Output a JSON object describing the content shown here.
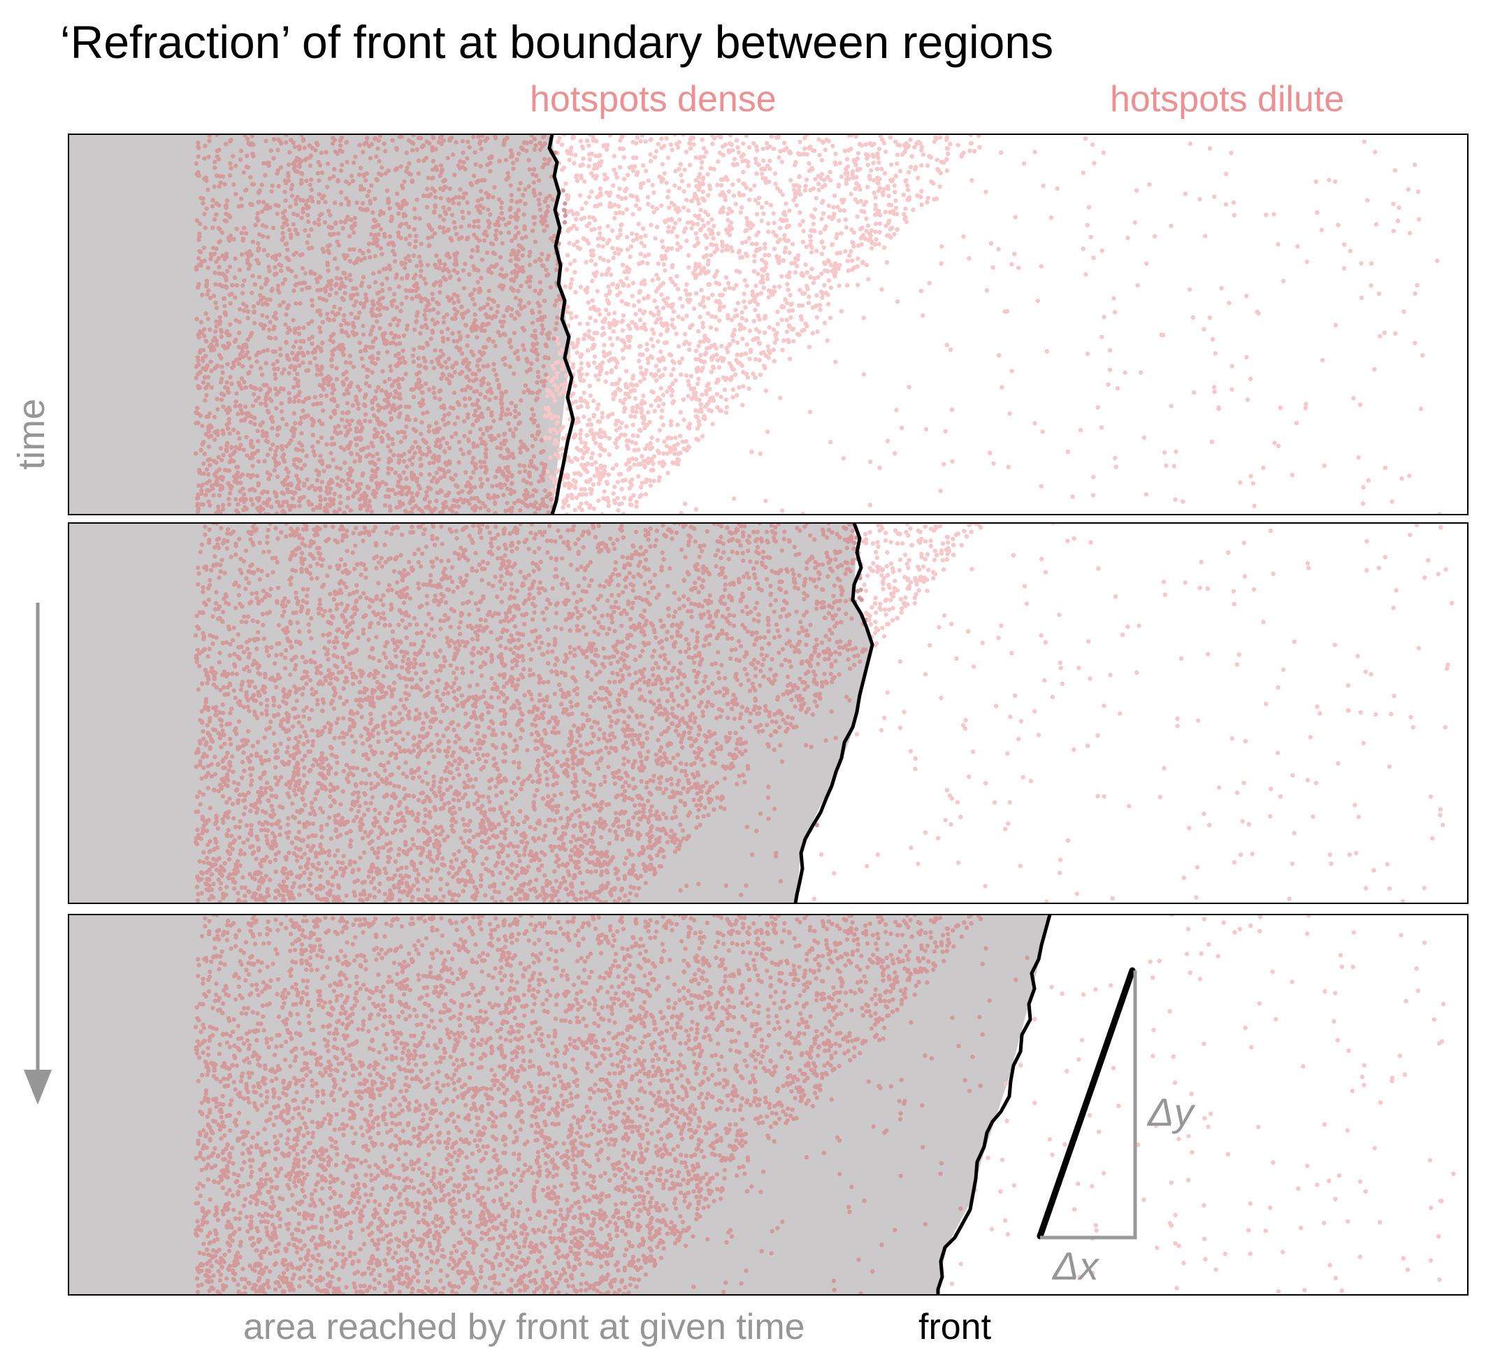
{
  "title": "‘Refraction’ of front at boundary between regions",
  "regions": {
    "dense_label": "hotspots dense",
    "dilute_label": "hotspots dilute"
  },
  "axis": {
    "time_label": "time"
  },
  "legend": {
    "area_label": "area reached by front at given time",
    "front_label": "front"
  },
  "slope": {
    "dx_label": "Δx",
    "dy_label": "Δy"
  },
  "panels": [
    {
      "name": "panel-1",
      "front_x_fraction": 0.35
    },
    {
      "name": "panel-2",
      "front_x_fraction": 0.57
    },
    {
      "name": "panel-3",
      "front_x_fraction": 0.72
    }
  ],
  "colors": {
    "reached_area": "#cbc9ca",
    "hotspot_reached": "#d49a9b",
    "hotspot_unreached": "#f7c7c9",
    "front_line": "#000000",
    "label_pink": "#ee8f92",
    "label_gray": "#969696"
  }
}
